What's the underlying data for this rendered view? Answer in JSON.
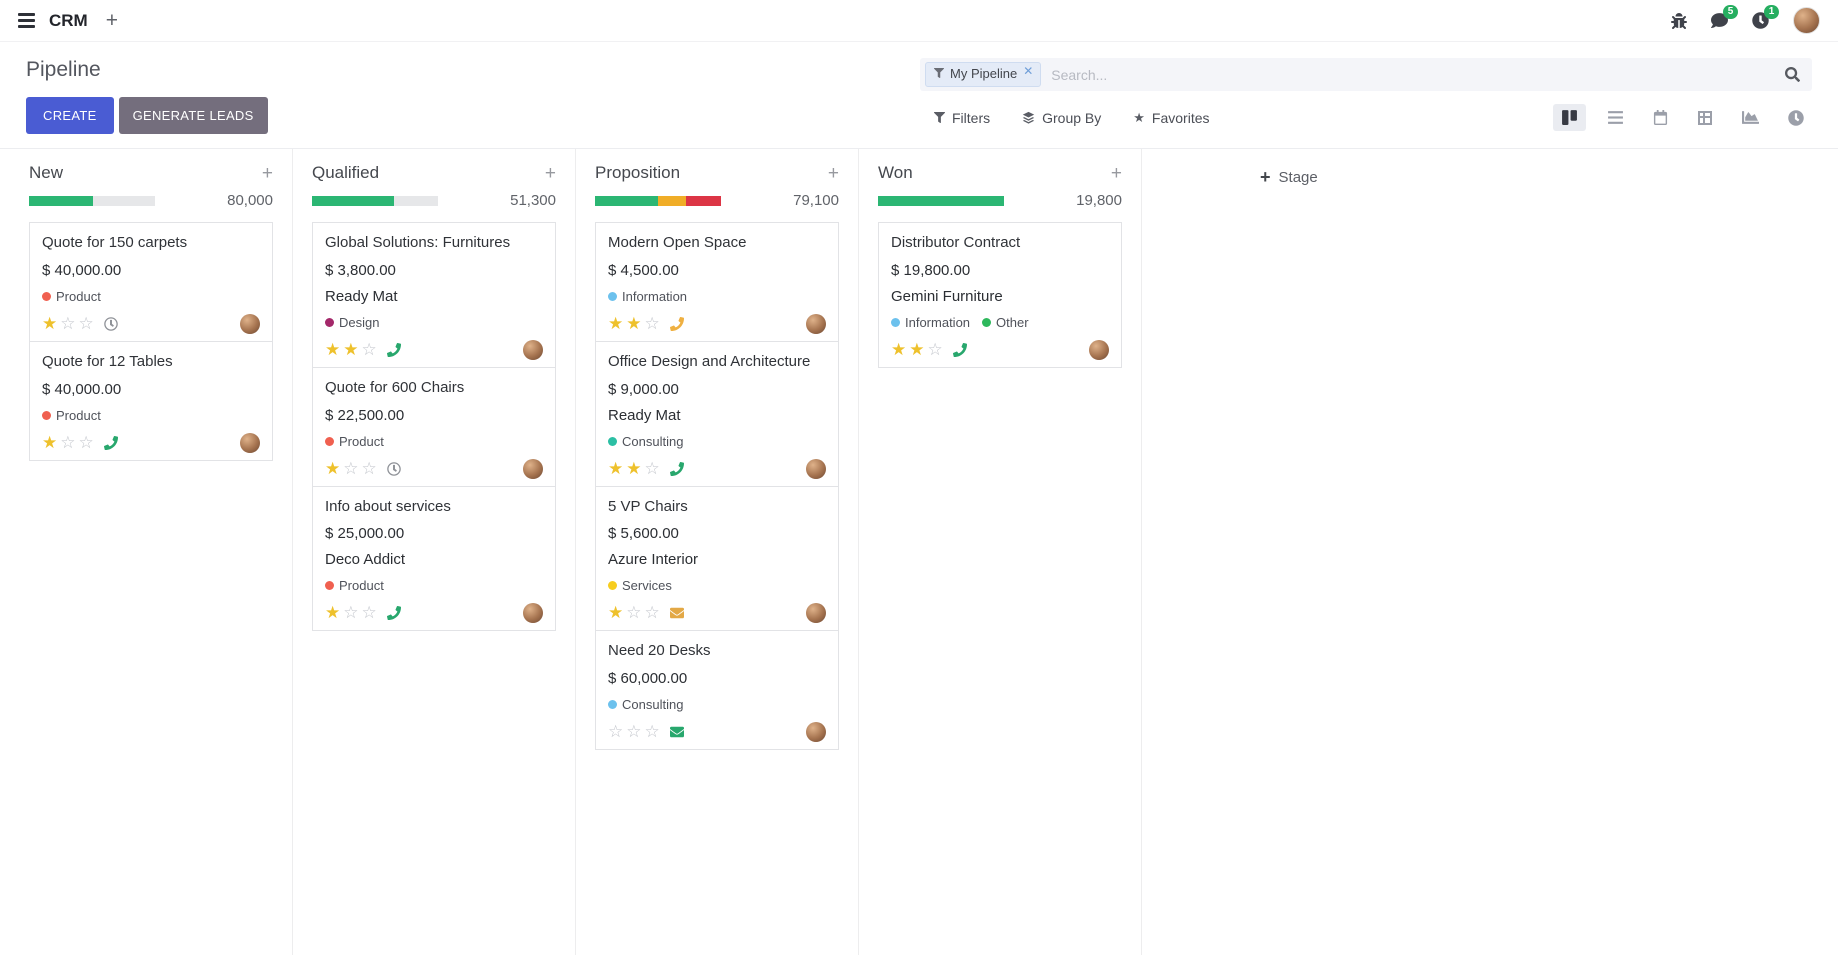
{
  "colors": {
    "accent": "#4a5cd3",
    "secondary": "#746e7d",
    "star-filled": "#eec12c",
    "badge": "#26ae60"
  },
  "navbar": {
    "app_name": "CRM",
    "message_badge": "5",
    "activity_badge": "1"
  },
  "control_panel": {
    "title": "Pipeline",
    "create_label": "CREATE",
    "generate_leads_label": "GENERATE LEADS",
    "search_facet": "My Pipeline",
    "search_placeholder": "Search...",
    "filters_label": "Filters",
    "group_by_label": "Group By",
    "favorites_label": "Favorites"
  },
  "view_switcher": {
    "active": "kanban",
    "views": [
      "kanban",
      "list",
      "calendar",
      "pivot",
      "graph",
      "activity"
    ]
  },
  "kanban": {
    "add_stage_label": "Stage",
    "columns": [
      {
        "name": "New",
        "counter": "80,000",
        "progress": [
          {
            "color": "#2bb673",
            "pct": 51
          },
          {
            "color": "#e6e7e9",
            "pct": 49
          }
        ],
        "cards": [
          {
            "title": "Quote for 150 carpets",
            "amount": "$ 40,000.00",
            "tags": [
              {
                "label": "Product",
                "color": "#f06050"
              }
            ],
            "stars": 1,
            "activity": {
              "icon": "clock",
              "color": "#8f9298"
            }
          },
          {
            "title": "Quote for 12 Tables",
            "amount": "$ 40,000.00",
            "tags": [
              {
                "label": "Product",
                "color": "#f06050"
              }
            ],
            "stars": 1,
            "activity": {
              "icon": "phone",
              "color": "#28a76d"
            }
          }
        ]
      },
      {
        "name": "Qualified",
        "counter": "51,300",
        "progress": [
          {
            "color": "#2bb673",
            "pct": 65
          },
          {
            "color": "#e6e7e9",
            "pct": 35
          }
        ],
        "cards": [
          {
            "title": "Global Solutions: Furnitures",
            "amount": "$ 3,800.00",
            "partner": "Ready Mat",
            "tags": [
              {
                "label": "Design",
                "color": "#a4286a"
              }
            ],
            "stars": 2,
            "activity": {
              "icon": "phone",
              "color": "#28a76d"
            }
          },
          {
            "title": "Quote for 600 Chairs",
            "amount": "$ 22,500.00",
            "tags": [
              {
                "label": "Product",
                "color": "#f06050"
              }
            ],
            "stars": 1,
            "activity": {
              "icon": "clock",
              "color": "#8f9298"
            }
          },
          {
            "title": "Info about services",
            "amount": "$ 25,000.00",
            "partner": "Deco Addict",
            "tags": [
              {
                "label": "Product",
                "color": "#f06050"
              }
            ],
            "stars": 1,
            "activity": {
              "icon": "phone",
              "color": "#28a76d"
            }
          }
        ]
      },
      {
        "name": "Proposition",
        "counter": "79,100",
        "progress": [
          {
            "color": "#2bb673",
            "pct": 50
          },
          {
            "color": "#f0ad27",
            "pct": 22
          },
          {
            "color": "#dc3545",
            "pct": 28
          }
        ],
        "cards": [
          {
            "title": "Modern Open Space",
            "amount": "$ 4,500.00",
            "tags": [
              {
                "label": "Information",
                "color": "#6cc1ed"
              }
            ],
            "stars": 2,
            "activity": {
              "icon": "phone",
              "color": "#efb041"
            }
          },
          {
            "title": "Office Design and Architecture",
            "amount": "$ 9,000.00",
            "partner": "Ready Mat",
            "tags": [
              {
                "label": "Consulting",
                "color": "#2bbfa4"
              }
            ],
            "stars": 2,
            "activity": {
              "icon": "phone",
              "color": "#28a76d"
            }
          },
          {
            "title": "5 VP Chairs",
            "amount": "$ 5,600.00",
            "partner": "Azure Interior",
            "tags": [
              {
                "label": "Services",
                "color": "#f7cd1f"
              }
            ],
            "stars": 1,
            "activity": {
              "icon": "mail",
              "color": "#e3a845"
            }
          },
          {
            "title": "Need 20 Desks",
            "amount": "$ 60,000.00",
            "tags": [
              {
                "label": "Consulting",
                "color": "#6cc1ed"
              }
            ],
            "stars": 0,
            "activity": {
              "icon": "mail",
              "color": "#28a76d"
            }
          }
        ]
      },
      {
        "name": "Won",
        "counter": "19,800",
        "progress": [
          {
            "color": "#2bb673",
            "pct": 100
          }
        ],
        "cards": [
          {
            "title": "Distributor Contract",
            "amount": "$ 19,800.00",
            "partner": "Gemini Furniture",
            "tags": [
              {
                "label": "Information",
                "color": "#6cc1ed"
              },
              {
                "label": "Other",
                "color": "#2eb85c"
              }
            ],
            "stars": 2,
            "activity": {
              "icon": "phone",
              "color": "#28a76d"
            }
          }
        ]
      }
    ]
  }
}
